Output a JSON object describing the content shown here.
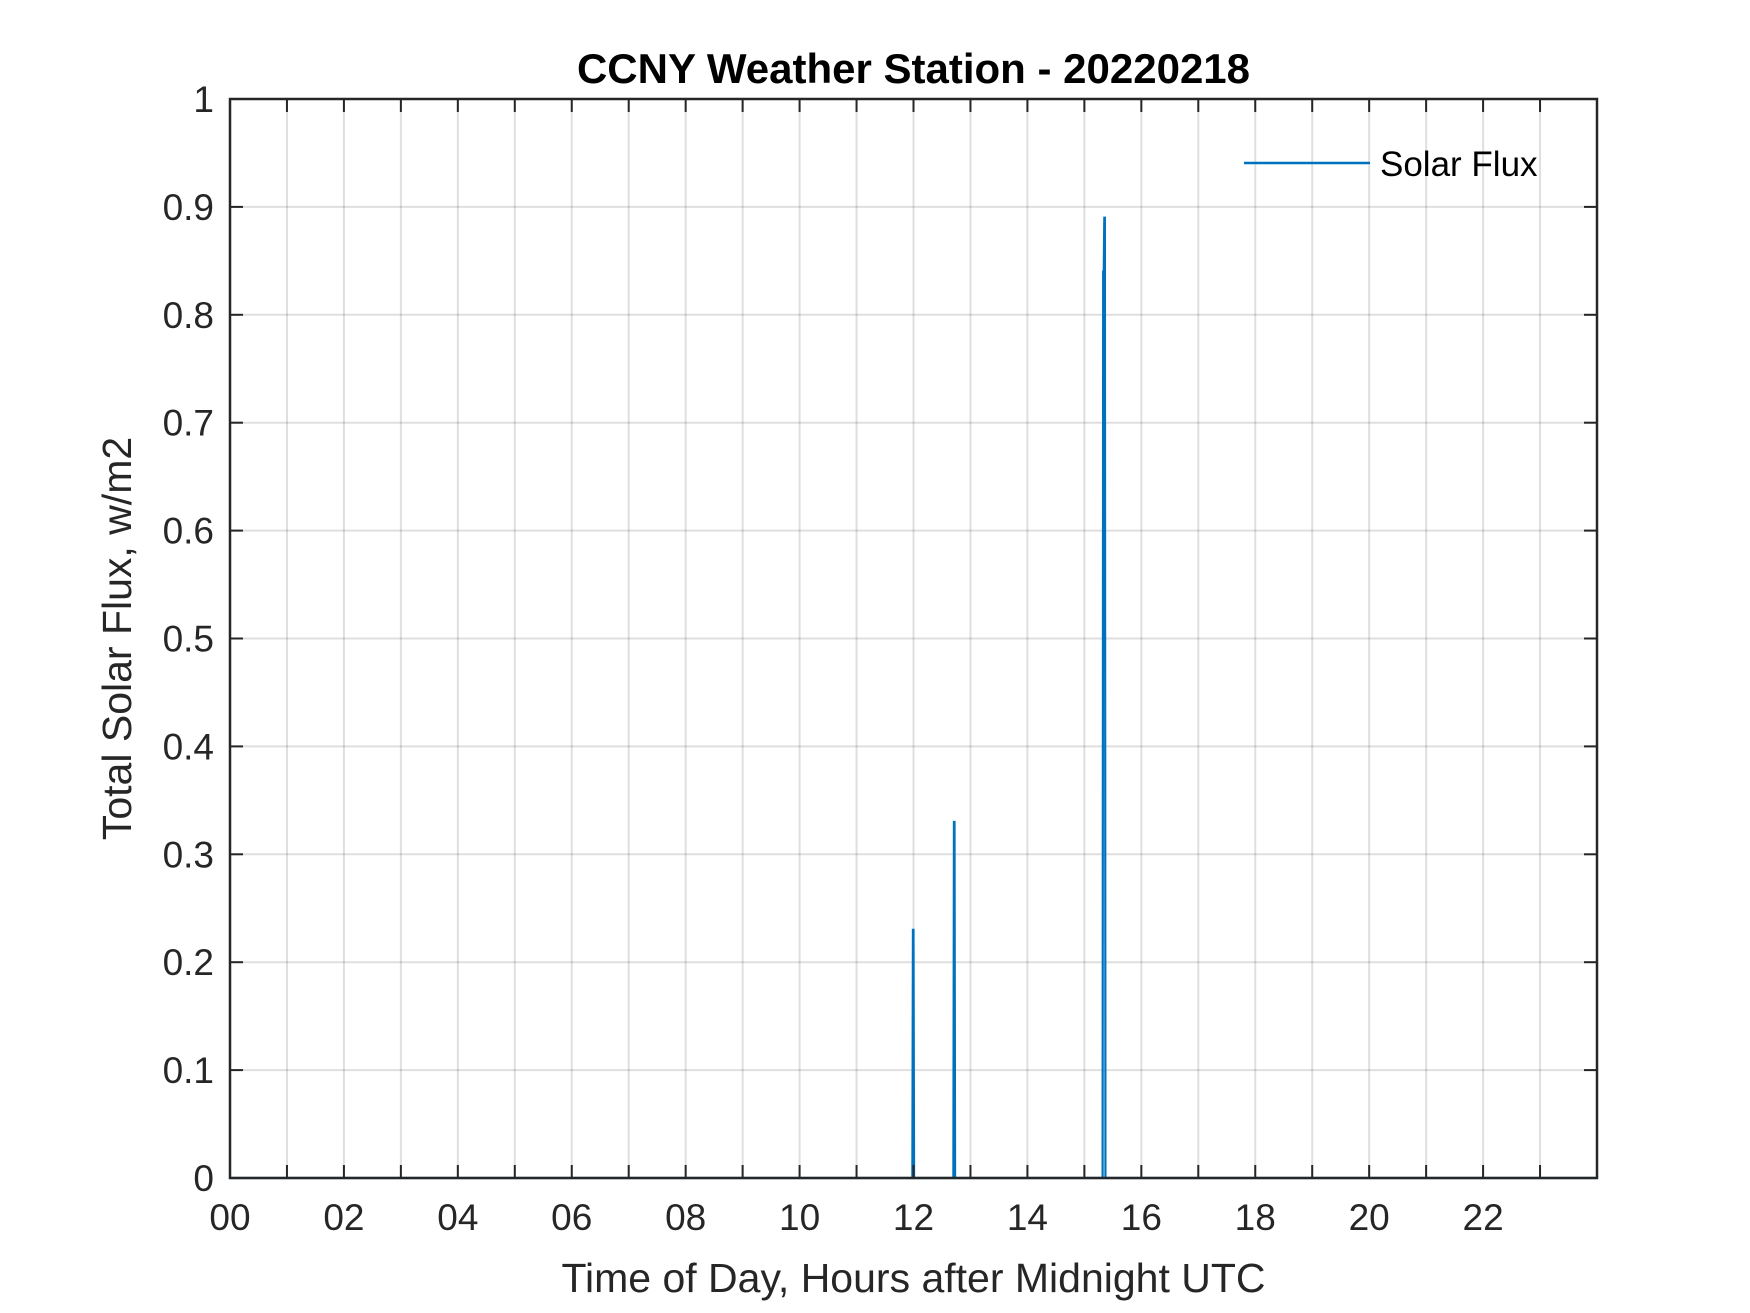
{
  "chart_data": {
    "type": "line",
    "title": "CCNY Weather Station - 20220218",
    "xlabel": "Time of Day, Hours after Midnight UTC",
    "ylabel": "Total Solar Flux, w/m2",
    "xlim": [
      0,
      24
    ],
    "ylim": [
      0,
      1
    ],
    "grid": true,
    "x_grid_step": 1,
    "xticks": [
      0,
      2,
      4,
      6,
      8,
      10,
      12,
      14,
      16,
      18,
      20,
      22
    ],
    "xtick_labels": [
      "00",
      "02",
      "04",
      "06",
      "08",
      "10",
      "12",
      "14",
      "16",
      "18",
      "20",
      "22"
    ],
    "yticks": [
      0,
      0.1,
      0.2,
      0.3,
      0.4,
      0.5,
      0.6,
      0.7,
      0.8,
      0.9,
      1
    ],
    "ytick_labels": [
      "0",
      "0.1",
      "0.2",
      "0.3",
      "0.4",
      "0.5",
      "0.6",
      "0.7",
      "0.8",
      "0.9",
      "1"
    ],
    "legend": {
      "position": "top-right",
      "entries": [
        "Solar Flux"
      ]
    },
    "series": [
      {
        "name": "Solar Flux",
        "color": "#0072BD",
        "x": [
          0,
          11.98,
          11.99,
          12.0,
          12.01,
          12.7,
          12.71,
          12.72,
          12.73,
          15.32,
          15.33,
          15.34,
          15.35,
          15.36,
          15.37,
          24
        ],
        "y": [
          0,
          0,
          0.23,
          0.23,
          0,
          0,
          0.33,
          0.33,
          0,
          0,
          0.84,
          0.84,
          0.89,
          0.89,
          0,
          0
        ]
      }
    ]
  }
}
